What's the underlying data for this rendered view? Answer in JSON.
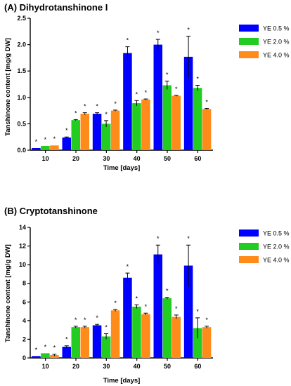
{
  "chart_data": [
    {
      "type": "bar",
      "title": "(A) Dihydrotanshinone I",
      "xlabel": "Time [days]",
      "ylabel": "Tanshinone content [mg/g DW]",
      "categories": [
        "10",
        "20",
        "30",
        "40",
        "50",
        "60"
      ],
      "ylim": [
        0,
        2.5
      ],
      "yticks": [
        "0.0",
        "0.5",
        "1.0",
        "1.5",
        "2.0",
        "2.5"
      ],
      "ytick_values": [
        0,
        0.5,
        1.0,
        1.5,
        2.0,
        2.5
      ],
      "grid": false,
      "legend_position": "top-right",
      "significance_marker": "*",
      "series": [
        {
          "name": "YE 0.5 %",
          "color": "#0000ff",
          "values": [
            0.04,
            0.24,
            0.69,
            1.84,
            2.0,
            1.77
          ],
          "errors": [
            0.0,
            0.01,
            0.02,
            0.12,
            0.1,
            0.39
          ]
        },
        {
          "name": "YE 2.0 %",
          "color": "#22cc22",
          "values": [
            0.08,
            0.57,
            0.5,
            0.89,
            1.23,
            1.18
          ],
          "errors": [
            0.0,
            0.01,
            0.06,
            0.05,
            0.08,
            0.05
          ]
        },
        {
          "name": "YE 4.0 %",
          "color": "#ff8c1a",
          "values": [
            0.09,
            0.69,
            0.75,
            0.96,
            1.03,
            0.78
          ],
          "errors": [
            0.0,
            0.02,
            0.01,
            0.01,
            0.01,
            0.01
          ]
        }
      ]
    },
    {
      "type": "bar",
      "title": "(B) Cryptotanshinone",
      "xlabel": "Time [days]",
      "ylabel": "Tanshinone content [mg/g DW]",
      "categories": [
        "10",
        "20",
        "30",
        "40",
        "50",
        "60"
      ],
      "ylim": [
        0,
        14
      ],
      "yticks": [
        "0",
        "2",
        "4",
        "6",
        "8",
        "10",
        "12",
        "14"
      ],
      "ytick_values": [
        0,
        2,
        4,
        6,
        8,
        10,
        12,
        14
      ],
      "grid": false,
      "legend_position": "top-right",
      "significance_marker": "*",
      "series": [
        {
          "name": "YE 0.5 %",
          "color": "#0000ff",
          "values": [
            0.2,
            1.2,
            3.5,
            8.6,
            11.1,
            9.9
          ],
          "errors": [
            0.0,
            0.1,
            0.1,
            0.5,
            1.0,
            2.2
          ]
        },
        {
          "name": "YE 2.0 %",
          "color": "#22cc22",
          "values": [
            0.5,
            3.3,
            2.3,
            5.5,
            6.4,
            3.2
          ],
          "errors": [
            0.0,
            0.1,
            0.3,
            0.2,
            0.1,
            1.1
          ]
        },
        {
          "name": "YE 4.0 %",
          "color": "#ff8c1a",
          "values": [
            0.3,
            3.3,
            5.1,
            4.7,
            4.4,
            3.3
          ],
          "errors": [
            0.1,
            0.1,
            0.1,
            0.1,
            0.2,
            0.1
          ]
        }
      ]
    }
  ]
}
